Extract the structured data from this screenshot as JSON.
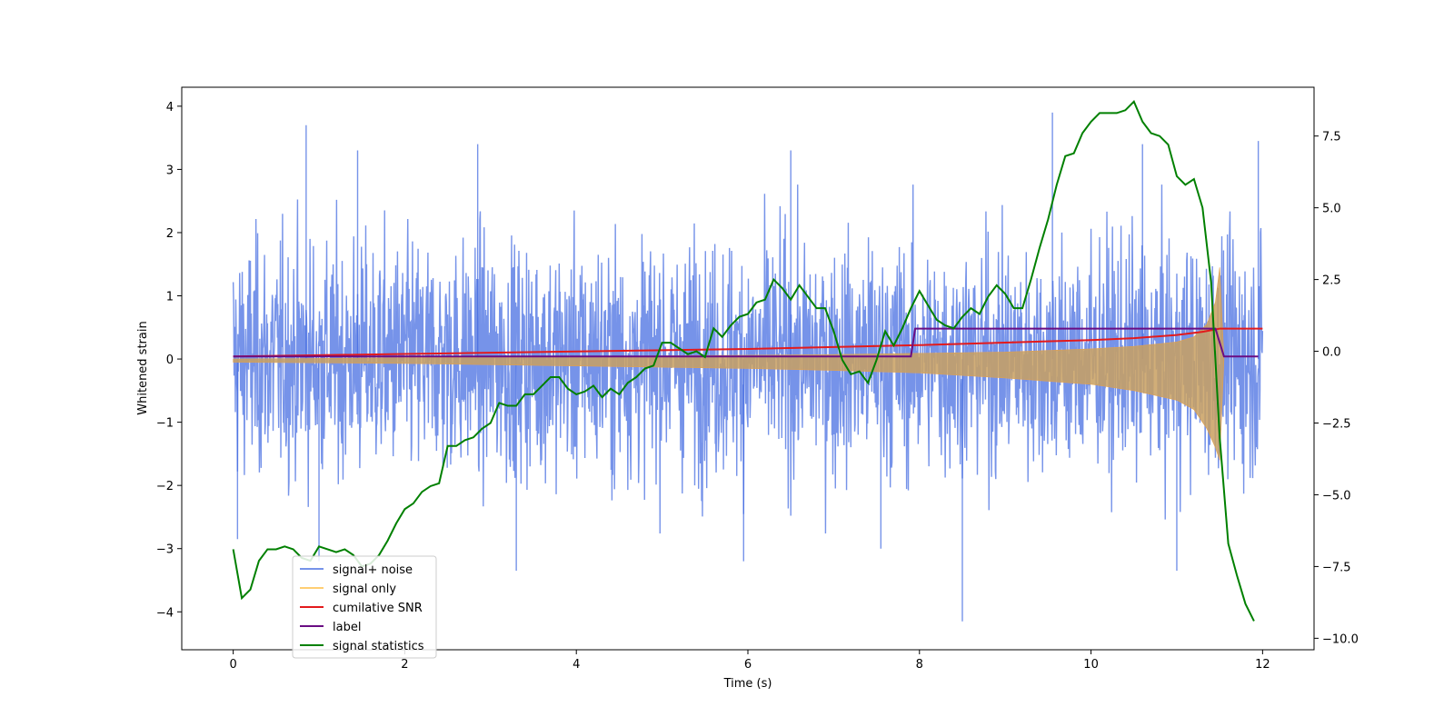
{
  "chart_data": {
    "type": "line",
    "title": "",
    "xlabel": "Time (s)",
    "ylabel": "Whitened strain",
    "y2label": "",
    "xlim": [
      -0.6,
      12.6
    ],
    "ylim": [
      -4.6,
      4.3
    ],
    "y2lim": [
      -10.4,
      9.2
    ],
    "xticks": [
      0,
      2,
      4,
      6,
      8,
      10,
      12
    ],
    "yticks": [
      -4,
      -3,
      -2,
      -1,
      0,
      1,
      2,
      3,
      4
    ],
    "y2ticks": [
      -10.0,
      -7.5,
      -5.0,
      -2.5,
      0.0,
      2.5,
      5.0,
      7.5
    ],
    "xtick_labels": [
      "0",
      "2",
      "4",
      "6",
      "8",
      "10",
      "12"
    ],
    "ytick_labels": [
      "−4",
      "−3",
      "−2",
      "−1",
      "0",
      "1",
      "2",
      "3",
      "4"
    ],
    "y2tick_labels": [
      "−10.0",
      "−7.5",
      "−5.0",
      "−2.5",
      "0.0",
      "2.5",
      "5.0",
      "7.5"
    ],
    "grid": false,
    "legend_position": "lower-left",
    "colors": {
      "signal_noise": "#4169e1",
      "signal_only": "#ffa500",
      "snr": "#e31a1c",
      "label": "#6a0d83",
      "stats": "#008000"
    },
    "series": [
      {
        "name": "signal+ noise",
        "axis": "left",
        "envelope": {
          "x": [
            0,
            1,
            2,
            3,
            4,
            5,
            6,
            7,
            8,
            9,
            10,
            11,
            12
          ],
          "upper": [
            2.4,
            2.4,
            2.4,
            2.4,
            2.4,
            2.4,
            2.4,
            2.4,
            2.4,
            2.4,
            2.4,
            2.4,
            2.4
          ],
          "lower": [
            -2.4,
            -2.4,
            -2.4,
            -2.4,
            -2.4,
            -2.4,
            -2.4,
            -2.4,
            -2.4,
            -2.4,
            -2.4,
            -2.4,
            -2.4
          ]
        },
        "peaks": [
          [
            0.85,
            3.7
          ],
          [
            9.55,
            3.9
          ],
          [
            1.45,
            3.3
          ],
          [
            2.85,
            3.4
          ],
          [
            6.5,
            3.3
          ],
          [
            10.6,
            3.4
          ],
          [
            11.95,
            3.45
          ],
          [
            8.5,
            -4.15
          ],
          [
            3.3,
            -3.35
          ],
          [
            1.0,
            -3.2
          ],
          [
            11.0,
            -3.35
          ],
          [
            5.95,
            -3.2
          ],
          [
            0.05,
            -2.85
          ],
          [
            7.55,
            -3.0
          ]
        ]
      },
      {
        "name": "signal only",
        "axis": "left",
        "envelope": {
          "x": [
            0,
            1,
            2,
            3,
            4,
            5,
            6,
            7,
            8,
            9,
            10,
            10.5,
            11,
            11.2,
            11.35,
            11.45,
            11.5,
            11.55
          ],
          "upper": [
            0.0,
            0.01,
            0.02,
            0.03,
            0.04,
            0.05,
            0.06,
            0.07,
            0.09,
            0.11,
            0.16,
            0.2,
            0.27,
            0.35,
            0.55,
            0.9,
            1.45,
            0.0
          ],
          "lower": [
            -0.05,
            -0.06,
            -0.07,
            -0.09,
            -0.11,
            -0.13,
            -0.15,
            -0.18,
            -0.22,
            -0.3,
            -0.4,
            -0.5,
            -0.65,
            -0.8,
            -1.1,
            -1.4,
            -1.6,
            0.0
          ]
        }
      },
      {
        "name": "cumilative SNR",
        "axis": "left",
        "x": [
          0,
          1,
          2,
          3,
          4,
          5,
          6,
          7,
          8,
          9,
          10,
          10.5,
          11,
          11.3,
          11.5,
          12
        ],
        "y": [
          0.04,
          0.06,
          0.08,
          0.1,
          0.12,
          0.14,
          0.16,
          0.19,
          0.22,
          0.26,
          0.3,
          0.33,
          0.38,
          0.43,
          0.48,
          0.48
        ]
      },
      {
        "name": "label",
        "axis": "left",
        "x": [
          0,
          7.9,
          7.95,
          11.45,
          11.55,
          11.95
        ],
        "y": [
          0.04,
          0.04,
          0.48,
          0.48,
          0.04,
          0.04
        ]
      },
      {
        "name": "signal statistics",
        "axis": "right",
        "x": [
          0,
          0.1,
          0.2,
          0.3,
          0.4,
          0.5,
          0.6,
          0.7,
          0.8,
          0.9,
          1.0,
          1.1,
          1.2,
          1.3,
          1.4,
          1.5,
          1.6,
          1.7,
          1.8,
          1.9,
          2.0,
          2.1,
          2.2,
          2.3,
          2.4,
          2.5,
          2.6,
          2.7,
          2.8,
          2.9,
          3.0,
          3.1,
          3.2,
          3.3,
          3.4,
          3.5,
          3.6,
          3.7,
          3.8,
          3.9,
          4.0,
          4.1,
          4.2,
          4.3,
          4.4,
          4.5,
          4.6,
          4.7,
          4.8,
          4.9,
          5.0,
          5.1,
          5.2,
          5.3,
          5.4,
          5.5,
          5.6,
          5.7,
          5.8,
          5.9,
          6.0,
          6.1,
          6.2,
          6.3,
          6.4,
          6.5,
          6.6,
          6.7,
          6.8,
          6.9,
          7.0,
          7.1,
          7.2,
          7.3,
          7.4,
          7.5,
          7.6,
          7.7,
          7.8,
          7.9,
          8.0,
          8.1,
          8.2,
          8.3,
          8.4,
          8.5,
          8.6,
          8.7,
          8.8,
          8.9,
          9.0,
          9.1,
          9.2,
          9.3,
          9.4,
          9.5,
          9.6,
          9.7,
          9.8,
          9.9,
          10.0,
          10.1,
          10.2,
          10.3,
          10.4,
          10.5,
          10.6,
          10.7,
          10.8,
          10.9,
          11.0,
          11.1,
          11.2,
          11.3,
          11.4,
          11.5,
          11.6,
          11.7,
          11.8,
          11.9
        ],
        "y": [
          -6.9,
          -8.6,
          -8.3,
          -7.3,
          -6.9,
          -6.9,
          -6.8,
          -6.9,
          -7.2,
          -7.3,
          -6.8,
          -6.9,
          -7.0,
          -6.9,
          -7.1,
          -7.5,
          -7.4,
          -7.1,
          -6.6,
          -6.0,
          -5.5,
          -5.3,
          -4.9,
          -4.7,
          -4.6,
          -3.3,
          -3.3,
          -3.1,
          -3.0,
          -2.7,
          -2.5,
          -1.8,
          -1.9,
          -1.9,
          -1.5,
          -1.5,
          -1.2,
          -0.9,
          -0.9,
          -1.3,
          -1.5,
          -1.4,
          -1.2,
          -1.6,
          -1.3,
          -1.5,
          -1.1,
          -0.9,
          -0.6,
          -0.5,
          0.3,
          0.3,
          0.1,
          -0.1,
          0.0,
          -0.2,
          0.8,
          0.5,
          0.9,
          1.2,
          1.3,
          1.7,
          1.8,
          2.5,
          2.2,
          1.8,
          2.3,
          1.9,
          1.5,
          1.5,
          0.7,
          -0.3,
          -0.8,
          -0.7,
          -1.1,
          -0.3,
          0.7,
          0.2,
          0.8,
          1.5,
          2.1,
          1.6,
          1.1,
          0.9,
          0.8,
          1.2,
          1.5,
          1.3,
          1.9,
          2.3,
          2.0,
          1.5,
          1.5,
          2.5,
          3.6,
          4.6,
          5.8,
          6.8,
          6.9,
          7.6,
          8.0,
          8.3,
          8.3,
          8.3,
          8.4,
          8.7,
          8.0,
          7.6,
          7.5,
          7.2,
          6.1,
          5.8,
          6.0,
          5.0,
          2.4,
          -3.0,
          -6.7,
          -7.8,
          -8.8,
          -9.4
        ]
      }
    ]
  }
}
